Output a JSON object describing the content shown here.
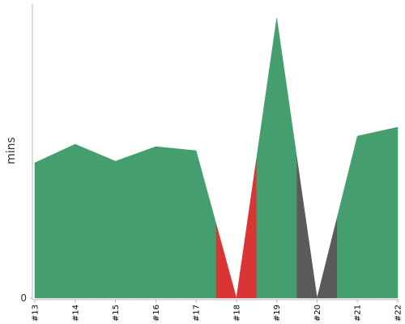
{
  "chart_data": {
    "type": "area",
    "y_label": "mins",
    "categories": [
      "#13",
      "#14",
      "#15",
      "#16",
      "#17",
      "#18",
      "#19",
      "#20",
      "#21",
      "#22"
    ],
    "values": [
      3.34,
      3.8,
      3.38,
      3.74,
      3.64,
      0,
      6.92,
      0,
      4.0,
      4.22
    ],
    "colors": [
      "#459e6d",
      "#459e6d",
      "#459e6d",
      "#459e6d",
      "#459e6d",
      "#d93535",
      "#459e6d",
      "#5a5a5a",
      "#459e6d",
      "#459e6d"
    ],
    "ylim": [
      0,
      7.26
    ],
    "yticks": [
      0
    ]
  }
}
